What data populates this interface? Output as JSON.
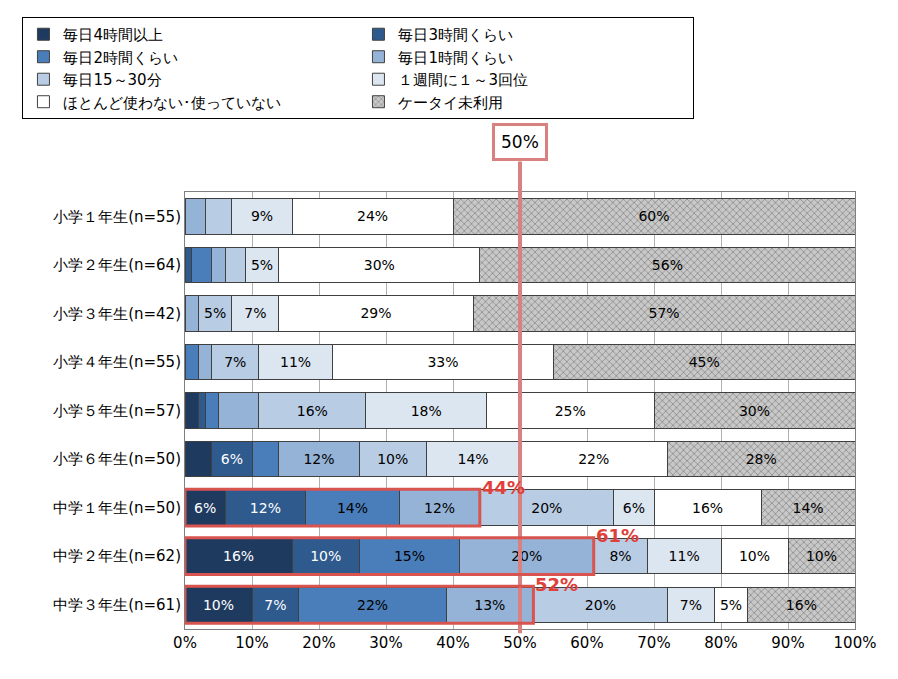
{
  "chart_data": {
    "type": "bar",
    "orientation": "horizontal",
    "stacked": true,
    "data_labels": true,
    "grid": true,
    "legend": "top",
    "categories": [
      "小学１年生(n=55)",
      "小学２年生(n=64)",
      "小学３年生(n=42)",
      "小学４年生(n=55)",
      "小学５年生(n=57)",
      "小学６年生(n=50)",
      "中学１年生(n=50)",
      "中学２年生(n=62)",
      "中学３年生(n=61)"
    ],
    "xlim": [
      0,
      100
    ],
    "xticks": [
      {
        "value": 0,
        "label": "0%"
      },
      {
        "value": 10,
        "label": "10%"
      },
      {
        "value": 20,
        "label": "20%"
      },
      {
        "value": 30,
        "label": "30%"
      },
      {
        "value": 40,
        "label": "40%"
      },
      {
        "value": 50,
        "label": "50%"
      },
      {
        "value": 60,
        "label": "60%"
      },
      {
        "value": 70,
        "label": "70%"
      },
      {
        "value": 80,
        "label": "80%"
      },
      {
        "value": 90,
        "label": "90%"
      },
      {
        "value": 100,
        "label": "100%"
      }
    ],
    "series": [
      {
        "name": "毎日4時間以上",
        "color": "#1f3a5f",
        "values": [
          0,
          0,
          0,
          0,
          2,
          4,
          6,
          16,
          10
        ],
        "value_labels": [
          null,
          null,
          null,
          null,
          null,
          null,
          "6%",
          "16%",
          "10%"
        ]
      },
      {
        "name": "毎日3時間くらい",
        "color": "#2e5a8e",
        "values": [
          0,
          1,
          0,
          0,
          1,
          6,
          12,
          10,
          7
        ],
        "value_labels": [
          null,
          null,
          null,
          null,
          null,
          "6%",
          "12%",
          "10%",
          "7%"
        ]
      },
      {
        "name": "毎日2時間くらい",
        "color": "#4a7ebb",
        "values": [
          0,
          3,
          0,
          2,
          2,
          4,
          14,
          15,
          22
        ],
        "value_labels": [
          null,
          null,
          null,
          null,
          null,
          null,
          "14%",
          "15%",
          "22%"
        ]
      },
      {
        "name": "毎日1時間くらい",
        "color": "#95b3d7",
        "values": [
          3,
          2,
          2,
          2,
          6,
          12,
          12,
          20,
          13
        ],
        "value_labels": [
          null,
          null,
          null,
          null,
          null,
          "12%",
          "12%",
          "20%",
          "13%"
        ]
      },
      {
        "name": "毎日15～30分",
        "color": "#b8cce4",
        "values": [
          4,
          3,
          5,
          7,
          16,
          10,
          20,
          8,
          20
        ],
        "value_labels": [
          null,
          null,
          "5%",
          "7%",
          "16%",
          "10%",
          "20%",
          "8%",
          "20%"
        ]
      },
      {
        "name": "１週間に１～3回位",
        "color": "#dce6f1",
        "values": [
          9,
          5,
          7,
          11,
          18,
          14,
          6,
          11,
          7
        ],
        "value_labels": [
          "9%",
          "5%",
          "7%",
          "11%",
          "18%",
          "14%",
          "6%",
          "11%",
          "7%"
        ]
      },
      {
        "name": "ほとんど使わない･使っていない",
        "color": "#ffffff",
        "values": [
          24,
          30,
          29,
          33,
          25,
          22,
          16,
          10,
          5
        ],
        "value_labels": [
          "24%",
          "30%",
          "29%",
          "33%",
          "25%",
          "22%",
          "16%",
          "10%",
          "5%"
        ]
      },
      {
        "name": "ケータイ未利用",
        "color": "#c8c8c8",
        "marker": "hatched",
        "values": [
          60,
          56,
          57,
          45,
          30,
          28,
          14,
          10,
          16
        ],
        "value_labels": [
          "60%",
          "56%",
          "57%",
          "45%",
          "30%",
          "28%",
          "14%",
          "10%",
          "16%"
        ]
      }
    ],
    "annotations": [
      {
        "text": "50%",
        "value": 50
      },
      {
        "text": "44%",
        "category": "中学１年生(n=50)",
        "value": 44
      },
      {
        "text": "61%",
        "category": "中学２年生(n=62)",
        "value": 61
      },
      {
        "text": "52%",
        "category": "中学３年生(n=61)",
        "value": 52
      }
    ]
  }
}
